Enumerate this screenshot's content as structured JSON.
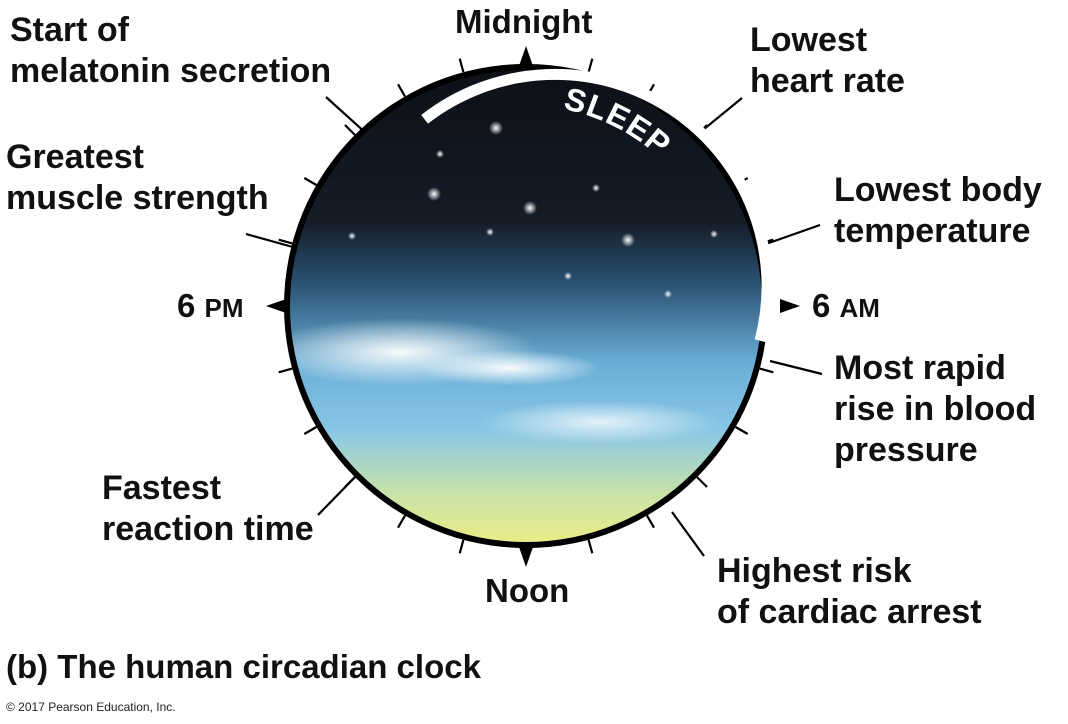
{
  "diagram": {
    "top_hour": "Midnight",
    "bottom_hour": "Noon",
    "left_hour": {
      "number": "6",
      "unit": "PM"
    },
    "right_hour": {
      "number": "6",
      "unit": "AM"
    },
    "arc_label": "SLEEP",
    "events": {
      "melatonin": "Start of\nmelatonin secretion",
      "heart_rate": "Lowest\nheart rate",
      "muscle": "Greatest\nmuscle strength",
      "body_temp": "Lowest body\ntemperature",
      "blood_pressure": "Most rapid\nrise in blood\npressure",
      "reaction": "Fastest\nreaction time",
      "cardiac": "Highest risk\nof cardiac arrest"
    }
  },
  "caption": "(b) The human circadian clock",
  "copyright": "© 2017 Pearson Education, Inc.",
  "colors": {
    "night_sky": "#0f1218",
    "day_sky": "#7fc3e8",
    "sun_glow": "#f4ec7a",
    "rim": "#000000"
  }
}
